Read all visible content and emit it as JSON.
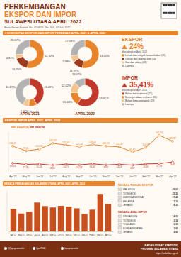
{
  "header": {
    "title_lines": [
      "PERKEMBANGAN",
      "EKSPOR DAN IMPOR",
      "SULAWESI UTARA APRIL 2022"
    ],
    "subtitle": "Berita Resmi Statistik No. 41/06/71 Thn. XVI, 02 Juni 2022"
  },
  "sections": {
    "komoditas": "3 KOMODITAS EKSPOR DAN IMPOR TERBESAR APRIL 2021 & APRIL 2022"
  },
  "donut_columns": [
    "APRIL 2021",
    "APRIL 2022"
  ],
  "summary": {
    "ekspor": {
      "label": "EKSPOR",
      "value_label": "24%",
      "note": "dibandingkan April 2021"
    },
    "impor": {
      "label": "IMPOR",
      "value_label": "35,41%",
      "note": "dibandingkan April 2021"
    }
  },
  "legends": {
    "ekspor": [
      {
        "name": "Lemak dan minyak hewani/nabati (15)",
        "color": "#e8842c"
      },
      {
        "name": "Olahan dari daging, ikan (16)",
        "color": "#9c3b1e"
      },
      {
        "name": "Ikan dan udang (03)",
        "color": "#f5c48f"
      },
      {
        "name": "Lainnya",
        "color": "#b3b3b3"
      }
    ],
    "impor": [
      {
        "name": "Bahan bakar mineral (27)",
        "color": "#c0392b"
      },
      {
        "name": "Mesin/peralatan mekanis (84)",
        "color": "#e8842c"
      },
      {
        "name": "Bahan kimia anorganik (28)",
        "color": "#f5c48f"
      },
      {
        "name": "Lainnya",
        "color": "#b3b3b3"
      }
    ]
  },
  "chart_data": [
    {
      "type": "pie",
      "values": [
        52.92,
        16.7,
        4.81,
        25.57
      ],
      "value_labels": [
        "52,92%",
        "16,70%",
        "4,81%",
        "25,57%"
      ],
      "colors": [
        "#e8842c",
        "#9c3b1e",
        "#f5c48f",
        "#b3b3b3"
      ],
      "data_labels": true
    },
    {
      "type": "pie",
      "values": [
        53.01,
        11.97,
        7.98,
        27.04
      ],
      "value_labels": [
        "53,01%",
        "11,97%",
        "7,98%",
        "27,04%"
      ],
      "colors": [
        "#e8842c",
        "#9c3b1e",
        "#f5c48f",
        "#b3b3b3"
      ],
      "data_labels": true
    },
    {
      "type": "pie",
      "values": [
        41.49,
        9.52,
        7.12,
        41.87
      ],
      "value_labels": [
        "41,49%",
        "9,52%",
        "7,12%",
        "41,87%"
      ],
      "colors": [
        "#c0392b",
        "#e8842c",
        "#f5c48f",
        "#b3b3b3"
      ],
      "data_labels": true
    },
    {
      "type": "pie",
      "values": [
        59.07,
        15.44,
        12.42,
        13.07
      ],
      "value_labels": [
        "59,07%",
        "15,44%",
        "12,42%",
        "13,07%"
      ],
      "colors": [
        "#c0392b",
        "#e8842c",
        "#f5c48f",
        "#b3b3b3"
      ],
      "data_labels": true
    },
    {
      "type": "line",
      "title": "EKSPOR-IMPOR APRIL 2021–APRIL 2022",
      "categories": [
        "Apr'21",
        "May'21",
        "Jun'21",
        "Jul'21",
        "Aug'21",
        "Sep'21",
        "Oct'21",
        "Nov'21",
        "Dec'21",
        "Jan'22",
        "Feb'22",
        "Mar'22",
        "Apr'22"
      ],
      "series": [
        {
          "name": "EKSPOR",
          "color": "#e8842c",
          "marker": "circle",
          "values": [
            118.49,
            91.25,
            101.53,
            134.58,
            125.43,
            115.38,
            128.02,
            118.63,
            114.36,
            84.95,
            110.69,
            181.26,
            146.87
          ],
          "value_labels": [
            "118,49",
            "91,25",
            "101,53",
            "134,58",
            "125,43",
            "115,38",
            "128,02",
            "118,63",
            "114,36",
            "84,95",
            "110,69",
            "181,26",
            "146,87"
          ]
        },
        {
          "name": "IMPOR",
          "color": "#c0392b",
          "marker": "circle",
          "values": [
            19.53,
            12.85,
            15.26,
            8.34,
            14.71,
            10.59,
            16.42,
            9.87,
            13.28,
            8.92,
            15.63,
            17.38,
            26.45
          ],
          "value_labels": [
            "19,53",
            "12,85",
            "15,26",
            "8,34",
            "14,71",
            "10,59",
            "16,42",
            "9,87",
            "13,28",
            "8,92",
            "15,63",
            "17,38",
            "26,45"
          ]
        }
      ],
      "ylim": [
        -30,
        200
      ],
      "data_labels": true,
      "tick_labels": "x",
      "legend": "upper left"
    },
    {
      "type": "bar",
      "title": "NERACA PERDAGANGAN SULAWESI UTARA, APRIL 2021–APRIL 2022",
      "categories": [
        "Apr'21",
        "May'21",
        "Jun'21",
        "Jul'21",
        "Aug'21",
        "Sep'21",
        "Oct'21",
        "Nov'21",
        "Dec'21",
        "Jan'22",
        "Feb'22",
        "Mar'22",
        "Apr'22"
      ],
      "values": [
        98.96,
        78.4,
        86.27,
        126.24,
        110.72,
        104.79,
        111.6,
        108.76,
        101.08,
        76.03,
        95.06,
        163.88,
        120.42
      ],
      "color": "#c8501e",
      "ylim": [
        0,
        180
      ],
      "tick_labels": "x"
    }
  ],
  "countries": {
    "ekspor": {
      "title": "NEGARA TUJUAN EKSPOR",
      "rows": [
        [
          "MALAYSIA",
          "45,62"
        ],
        [
          "TIONGKOK",
          "25,25"
        ],
        [
          "AMERIKA SERIKAT",
          "17,48"
        ],
        [
          "BELANDA",
          "13,10"
        ],
        [
          "JEPANG",
          "8,36"
        ]
      ]
    },
    "impor": {
      "title": "NEGARA ASAL IMPOR",
      "rows": [
        [
          "SINGAPURA",
          "14,05"
        ],
        [
          "TIONGKOK",
          "3,34"
        ],
        [
          "THAILAND",
          "2,12"
        ],
        [
          "KOREA SELATAN",
          "1,92"
        ],
        [
          "JEPANG",
          "0,60"
        ]
      ]
    }
  },
  "footer": {
    "socials": [
      "@bpsprovsulut",
      "bps7100",
      "bpsprovsulut"
    ],
    "org_lines": [
      "BADAN PUSAT STATISTIK",
      "PROVINSI SULAWESI UTARA"
    ],
    "url": "https://sulut.bps.go.id"
  }
}
